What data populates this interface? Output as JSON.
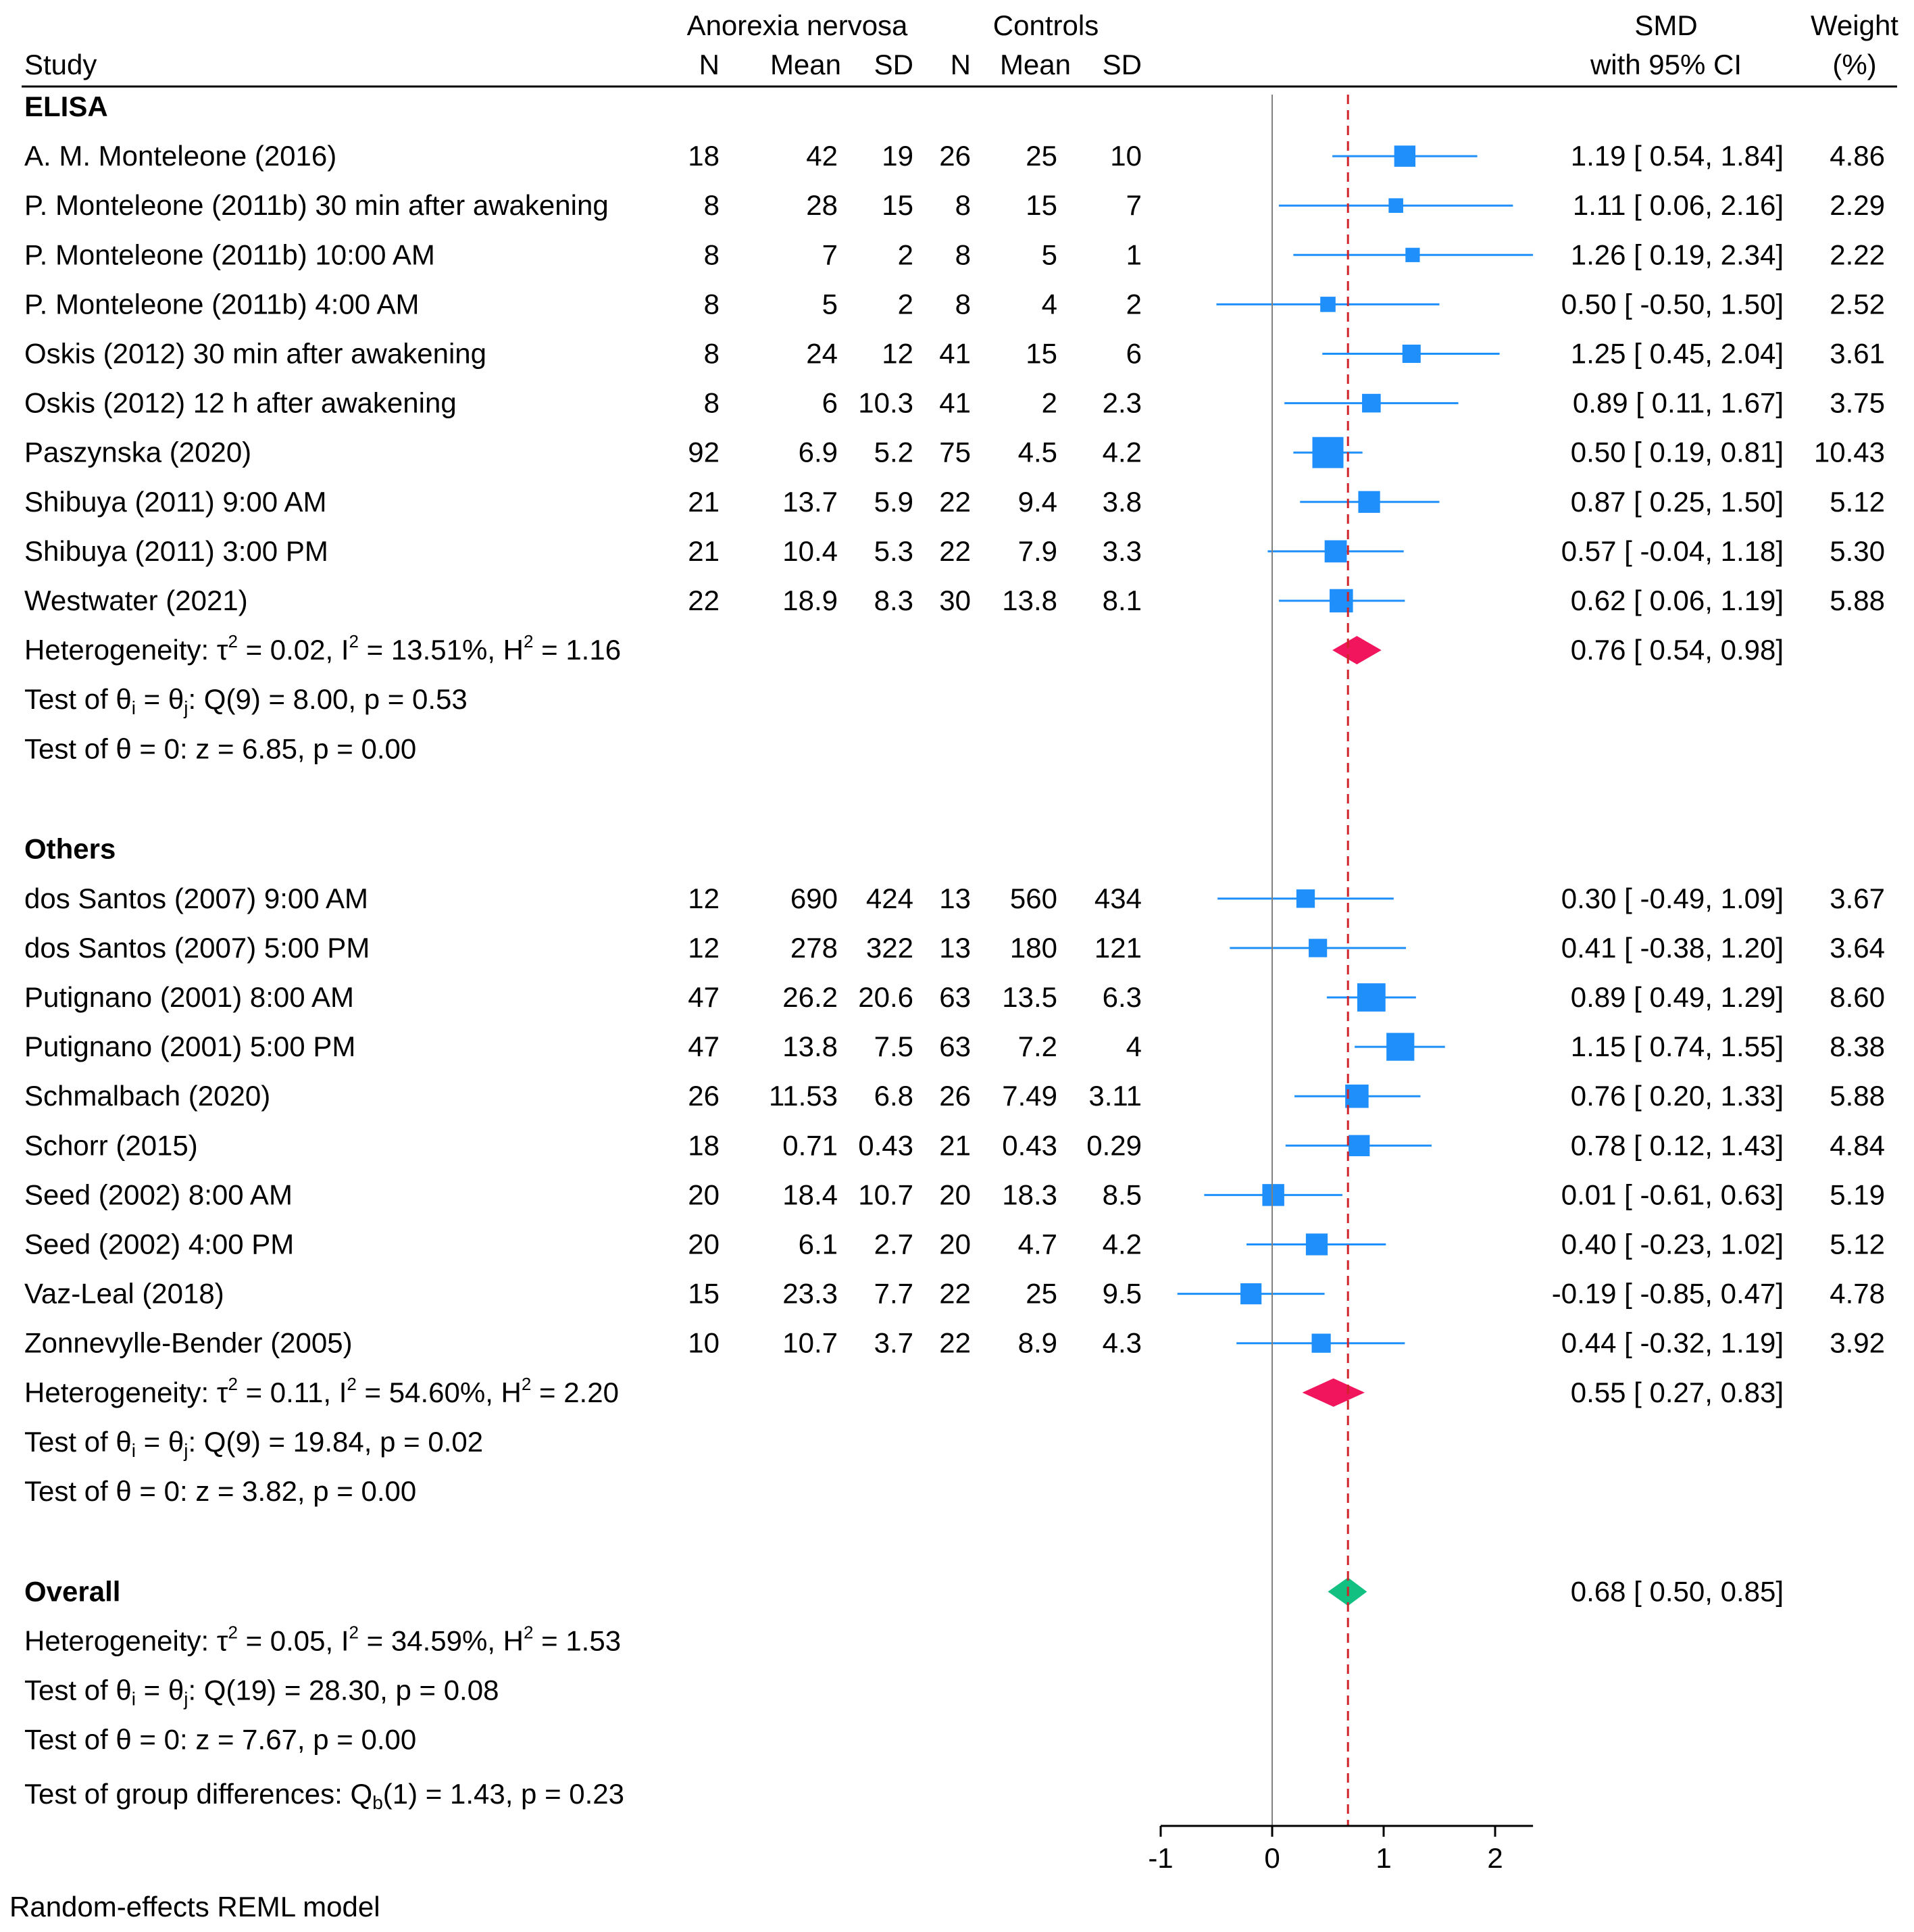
{
  "header": {
    "study_label": "Study",
    "group1_label": "Anorexia nervosa",
    "group2_label": "Controls",
    "n_label": "N",
    "mean_label": "Mean",
    "sd_label": "SD",
    "smd_label_1": "SMD",
    "smd_label_2": "with 95% CI",
    "weight_label_1": "Weight",
    "weight_label_2": "(%)"
  },
  "colors": {
    "study_marker": "#1e8ffb",
    "subgroup_diamond": "#f0155c",
    "overall_diamond": "#12c082",
    "overall_line": "#d1232a",
    "axis": "#000000",
    "null_line": "#808080"
  },
  "chart_data": {
    "type": "forest",
    "axis": {
      "min": -1,
      "max": 2.34,
      "ticks": [
        "-1",
        "0",
        "1",
        "2"
      ],
      "tick_values": [
        -1,
        0,
        1,
        2
      ],
      "null_value": 0
    },
    "overall_effect": 0.68,
    "groups": [
      {
        "name": "ELISA",
        "studies": [
          {
            "label": "A. M. Monteleone (2016)",
            "n1": "18",
            "mean1": "42",
            "sd1": "19",
            "n2": "26",
            "mean2": "25",
            "sd2": "10",
            "smd": 1.19,
            "lo": 0.54,
            "hi": 1.84,
            "ci_text": "1.19 [  0.54,  1.84]",
            "weight": 4.86,
            "weight_text": "4.86"
          },
          {
            "label": "P. Monteleone (2011b) 30 min after awakening",
            "n1": "8",
            "mean1": "28",
            "sd1": "15",
            "n2": "8",
            "mean2": "15",
            "sd2": "7",
            "smd": 1.11,
            "lo": 0.06,
            "hi": 2.16,
            "ci_text": "1.11 [  0.06,  2.16]",
            "weight": 2.29,
            "weight_text": "2.29"
          },
          {
            "label": "P. Monteleone (2011b) 10:00 AM",
            "n1": "8",
            "mean1": "7",
            "sd1": "2",
            "n2": "8",
            "mean2": "5",
            "sd2": "1",
            "smd": 1.26,
            "lo": 0.19,
            "hi": 2.34,
            "ci_text": "1.26 [  0.19,  2.34]",
            "weight": 2.22,
            "weight_text": "2.22"
          },
          {
            "label": "P. Monteleone (2011b) 4:00 AM",
            "n1": "8",
            "mean1": "5",
            "sd1": "2",
            "n2": "8",
            "mean2": "4",
            "sd2": "2",
            "smd": 0.5,
            "lo": -0.5,
            "hi": 1.5,
            "ci_text": "0.50 [ -0.50,  1.50]",
            "weight": 2.52,
            "weight_text": "2.52"
          },
          {
            "label": "Oskis (2012) 30 min after awakening",
            "n1": "8",
            "mean1": "24",
            "sd1": "12",
            "n2": "41",
            "mean2": "15",
            "sd2": "6",
            "smd": 1.25,
            "lo": 0.45,
            "hi": 2.04,
            "ci_text": "1.25 [  0.45,  2.04]",
            "weight": 3.61,
            "weight_text": "3.61"
          },
          {
            "label": "Oskis (2012) 12 h after awakening",
            "n1": "8",
            "mean1": "6",
            "sd1": "10.3",
            "n2": "41",
            "mean2": "2",
            "sd2": "2.3",
            "smd": 0.89,
            "lo": 0.11,
            "hi": 1.67,
            "ci_text": "0.89 [  0.11,  1.67]",
            "weight": 3.75,
            "weight_text": "3.75"
          },
          {
            "label": "Paszynska (2020)",
            "n1": "92",
            "mean1": "6.9",
            "sd1": "5.2",
            "n2": "75",
            "mean2": "4.5",
            "sd2": "4.2",
            "smd": 0.5,
            "lo": 0.19,
            "hi": 0.81,
            "ci_text": "0.50 [  0.19,  0.81]",
            "weight": 10.43,
            "weight_text": "10.43"
          },
          {
            "label": "Shibuya (2011) 9:00 AM",
            "n1": "21",
            "mean1": "13.7",
            "sd1": "5.9",
            "n2": "22",
            "mean2": "9.4",
            "sd2": "3.8",
            "smd": 0.87,
            "lo": 0.25,
            "hi": 1.5,
            "ci_text": "0.87 [  0.25,  1.50]",
            "weight": 5.12,
            "weight_text": "5.12"
          },
          {
            "label": "Shibuya (2011) 3:00 PM",
            "n1": "21",
            "mean1": "10.4",
            "sd1": "5.3",
            "n2": "22",
            "mean2": "7.9",
            "sd2": "3.3",
            "smd": 0.57,
            "lo": -0.04,
            "hi": 1.18,
            "ci_text": "0.57 [ -0.04,  1.18]",
            "weight": 5.3,
            "weight_text": "5.30"
          },
          {
            "label": "Westwater (2021)",
            "n1": "22",
            "mean1": "18.9",
            "sd1": "8.3",
            "n2": "30",
            "mean2": "13.8",
            "sd2": "8.1",
            "smd": 0.62,
            "lo": 0.06,
            "hi": 1.19,
            "ci_text": "0.62 [  0.06,  1.19]",
            "weight": 5.88,
            "weight_text": "5.88"
          }
        ],
        "summary": {
          "smd": 0.76,
          "lo": 0.54,
          "hi": 0.98,
          "ci_text": "0.76 [  0.54,  0.98]"
        },
        "het": {
          "tau2": "0.02",
          "i2": "13.51%",
          "h2": "1.16"
        },
        "q_test": {
          "df": "9",
          "q": "8.00",
          "p": "0.53"
        },
        "z_test": {
          "z": "6.85",
          "p": "0.00"
        }
      },
      {
        "name": "Others",
        "studies": [
          {
            "label": "dos Santos (2007) 9:00 AM",
            "n1": "12",
            "mean1": "690",
            "sd1": "424",
            "n2": "13",
            "mean2": "560",
            "sd2": "434",
            "smd": 0.3,
            "lo": -0.49,
            "hi": 1.09,
            "ci_text": "0.30 [ -0.49,  1.09]",
            "weight": 3.67,
            "weight_text": "3.67"
          },
          {
            "label": "dos Santos (2007) 5:00 PM",
            "n1": "12",
            "mean1": "278",
            "sd1": "322",
            "n2": "13",
            "mean2": "180",
            "sd2": "121",
            "smd": 0.41,
            "lo": -0.38,
            "hi": 1.2,
            "ci_text": "0.41 [ -0.38,  1.20]",
            "weight": 3.64,
            "weight_text": "3.64"
          },
          {
            "label": "Putignano (2001) 8:00 AM",
            "n1": "47",
            "mean1": "26.2",
            "sd1": "20.6",
            "n2": "63",
            "mean2": "13.5",
            "sd2": "6.3",
            "smd": 0.89,
            "lo": 0.49,
            "hi": 1.29,
            "ci_text": "0.89 [  0.49,  1.29]",
            "weight": 8.6,
            "weight_text": "8.60"
          },
          {
            "label": "Putignano (2001) 5:00 PM",
            "n1": "47",
            "mean1": "13.8",
            "sd1": "7.5",
            "n2": "63",
            "mean2": "7.2",
            "sd2": "4",
            "smd": 1.15,
            "lo": 0.74,
            "hi": 1.55,
            "ci_text": "1.15 [  0.74,  1.55]",
            "weight": 8.38,
            "weight_text": "8.38"
          },
          {
            "label": "Schmalbach (2020)",
            "n1": "26",
            "mean1": "11.53",
            "sd1": "6.8",
            "n2": "26",
            "mean2": "7.49",
            "sd2": "3.11",
            "smd": 0.76,
            "lo": 0.2,
            "hi": 1.33,
            "ci_text": "0.76 [  0.20,  1.33]",
            "weight": 5.88,
            "weight_text": "5.88"
          },
          {
            "label": "Schorr (2015)",
            "n1": "18",
            "mean1": "0.71",
            "sd1": "0.43",
            "n2": "21",
            "mean2": "0.43",
            "sd2": "0.29",
            "smd": 0.78,
            "lo": 0.12,
            "hi": 1.43,
            "ci_text": "0.78 [  0.12,  1.43]",
            "weight": 4.84,
            "weight_text": "4.84"
          },
          {
            "label": "Seed (2002) 8:00 AM",
            "n1": "20",
            "mean1": "18.4",
            "sd1": "10.7",
            "n2": "20",
            "mean2": "18.3",
            "sd2": "8.5",
            "smd": 0.01,
            "lo": -0.61,
            "hi": 0.63,
            "ci_text": "0.01 [ -0.61,  0.63]",
            "weight": 5.19,
            "weight_text": "5.19"
          },
          {
            "label": "Seed (2002) 4:00 PM",
            "n1": "20",
            "mean1": "6.1",
            "sd1": "2.7",
            "n2": "20",
            "mean2": "4.7",
            "sd2": "4.2",
            "smd": 0.4,
            "lo": -0.23,
            "hi": 1.02,
            "ci_text": "0.40 [ -0.23,  1.02]",
            "weight": 5.12,
            "weight_text": "5.12"
          },
          {
            "label": "Vaz-Leal (2018)",
            "n1": "15",
            "mean1": "23.3",
            "sd1": "7.7",
            "n2": "22",
            "mean2": "25",
            "sd2": "9.5",
            "smd": -0.19,
            "lo": -0.85,
            "hi": 0.47,
            "ci_text": "-0.19 [ -0.85,  0.47]",
            "weight": 4.78,
            "weight_text": "4.78"
          },
          {
            "label": "Zonnevylle-Bender (2005)",
            "n1": "10",
            "mean1": "10.7",
            "sd1": "3.7",
            "n2": "22",
            "mean2": "8.9",
            "sd2": "4.3",
            "smd": 0.44,
            "lo": -0.32,
            "hi": 1.19,
            "ci_text": "0.44 [ -0.32,  1.19]",
            "weight": 3.92,
            "weight_text": "3.92"
          }
        ],
        "summary": {
          "smd": 0.55,
          "lo": 0.27,
          "hi": 0.83,
          "ci_text": "0.55 [  0.27,  0.83]"
        },
        "het": {
          "tau2": "0.11",
          "i2": "54.60%",
          "h2": "2.20"
        },
        "q_test": {
          "df": "9",
          "q": "19.84",
          "p": "0.02"
        },
        "z_test": {
          "z": "3.82",
          "p": "0.00"
        }
      }
    ],
    "overall": {
      "label": "Overall",
      "smd": 0.68,
      "lo": 0.5,
      "hi": 0.85,
      "ci_text": "0.68 [  0.50,  0.85]",
      "het": {
        "tau2": "0.05",
        "i2": "34.59%",
        "h2": "1.53"
      },
      "q_test": {
        "df": "19",
        "q": "28.30",
        "p": "0.08"
      },
      "z_test": {
        "z": "7.67",
        "p": "0.00"
      }
    },
    "group_test": {
      "df": "1",
      "q": "1.43",
      "p": "0.23"
    },
    "model_note": "Random-effects REML model"
  }
}
